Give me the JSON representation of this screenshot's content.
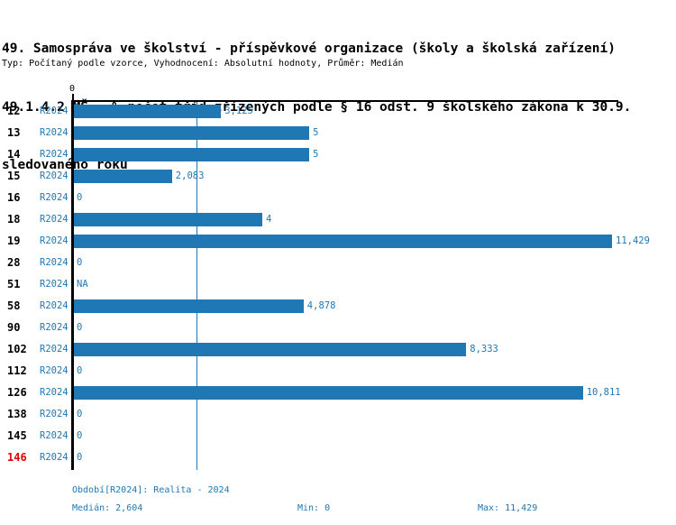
{
  "header": {
    "title_line1": "49. Samospráva ve školství - příspěvkové organizace (školy a školská zařízení)",
    "title_line2": "49.1.4.2 MŠ - % počet tříd zřízených podle § 16 odst. 9 školského zákona k 30.9.",
    "title_line3": "sledovaného roku",
    "subtitle": "Typ: Počítaný podle vzorce, Vyhodnocení: Absolutní hodnoty, Průměr: Medián"
  },
  "colors": {
    "bar": "#1f77b4",
    "accent_text": "#1f77b4",
    "highlight": "#e00000",
    "axis": "#000000"
  },
  "chart_data": {
    "type": "bar",
    "orientation": "horizontal",
    "title": "49.1.4.2 MŠ - % počet tříd zřízených podle § 16 odst. 9 školského zákona k 30.9. sledovaného roku",
    "x_axis": {
      "tick_label": "0",
      "min": 0,
      "max": 11.429
    },
    "median": 2.604,
    "legend_position": "none",
    "grid": false,
    "categories": [
      "12",
      "13",
      "14",
      "15",
      "16",
      "18",
      "19",
      "28",
      "51",
      "58",
      "90",
      "102",
      "112",
      "126",
      "138",
      "145",
      "146"
    ],
    "series": [
      {
        "name": "R2024",
        "values": [
          3.125,
          5,
          5,
          2.083,
          0,
          4,
          11.429,
          0,
          null,
          4.878,
          0,
          8.333,
          0,
          10.811,
          0,
          0,
          0
        ]
      }
    ],
    "rows": [
      {
        "id": "12",
        "period": "R2024",
        "value": 3.125,
        "label": "3,125"
      },
      {
        "id": "13",
        "period": "R2024",
        "value": 5,
        "label": "5"
      },
      {
        "id": "14",
        "period": "R2024",
        "value": 5,
        "label": "5"
      },
      {
        "id": "15",
        "period": "R2024",
        "value": 2.083,
        "label": "2,083"
      },
      {
        "id": "16",
        "period": "R2024",
        "value": 0,
        "label": "0"
      },
      {
        "id": "18",
        "period": "R2024",
        "value": 4,
        "label": "4"
      },
      {
        "id": "19",
        "period": "R2024",
        "value": 11.429,
        "label": "11,429"
      },
      {
        "id": "28",
        "period": "R2024",
        "value": 0,
        "label": "0"
      },
      {
        "id": "51",
        "period": "R2024",
        "value": null,
        "label": "NA"
      },
      {
        "id": "58",
        "period": "R2024",
        "value": 4.878,
        "label": "4,878"
      },
      {
        "id": "90",
        "period": "R2024",
        "value": 0,
        "label": "0"
      },
      {
        "id": "102",
        "period": "R2024",
        "value": 8.333,
        "label": "8,333"
      },
      {
        "id": "112",
        "period": "R2024",
        "value": 0,
        "label": "0"
      },
      {
        "id": "126",
        "period": "R2024",
        "value": 10.811,
        "label": "10,811"
      },
      {
        "id": "138",
        "period": "R2024",
        "value": 0,
        "label": "0"
      },
      {
        "id": "145",
        "period": "R2024",
        "value": 0,
        "label": "0"
      },
      {
        "id": "146",
        "period": "R2024",
        "value": 0,
        "label": "0",
        "highlight": true
      }
    ]
  },
  "footer": {
    "period_label": "Období[R2024]: Realita - 2024",
    "median_label": "Medián: 2,604",
    "min_label": "Min: 0",
    "max_label": "Max: 11,429"
  }
}
